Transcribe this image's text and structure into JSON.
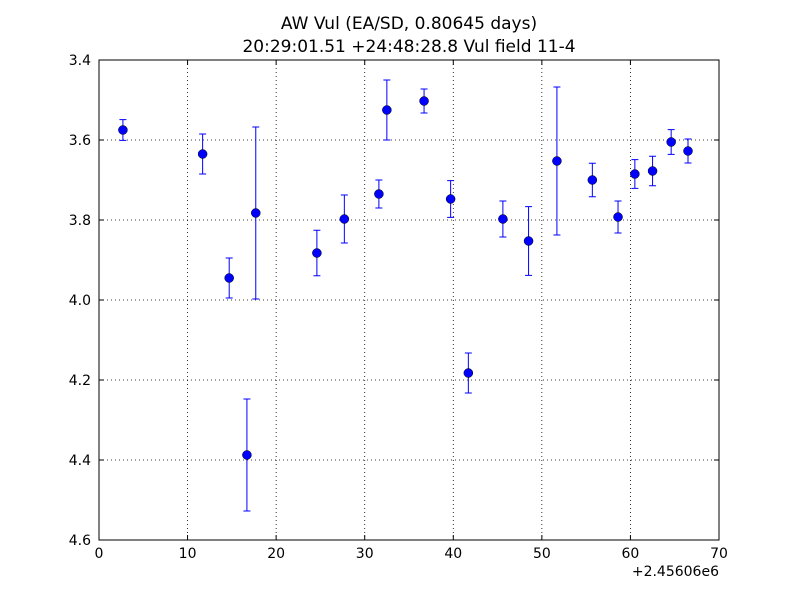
{
  "chart_data": {
    "type": "errorbar",
    "title": "AW Vul (EA/SD, 0.80645 days)",
    "subtitle": "20:29:01.51 +24:48:28.8 Vul field 11-4",
    "x_offset_label": "+2.45606e6",
    "color": "#0000ff",
    "grid": true,
    "x": [
      2.7,
      11.7,
      14.7,
      16.7,
      17.7,
      24.6,
      27.7,
      31.6,
      32.5,
      36.7,
      39.7,
      41.7,
      45.6,
      48.5,
      51.7,
      55.7,
      58.6,
      60.5,
      62.5,
      64.6,
      66.5
    ],
    "values": [
      3.575,
      3.635,
      3.945,
      4.3875,
      3.7825,
      3.8825,
      3.7975,
      3.735,
      3.525,
      3.5025,
      3.7475,
      4.1825,
      3.7975,
      3.8525,
      3.6525,
      3.7,
      3.7925,
      3.685,
      3.6775,
      3.605,
      3.6275
    ],
    "errors": [
      0.026,
      0.05,
      0.05,
      0.14,
      0.215,
      0.057,
      0.06,
      0.035,
      0.075,
      0.03,
      0.046,
      0.05,
      0.045,
      0.086,
      0.185,
      0.042,
      0.04,
      0.036,
      0.037,
      0.031,
      0.03
    ],
    "xlim": [
      0,
      70
    ],
    "xticks": [
      0,
      10,
      20,
      30,
      40,
      50,
      60,
      70
    ],
    "ylim": [
      4.6,
      3.4
    ],
    "yticks": [
      3.4,
      3.6,
      3.8,
      {
        "value": 4,
        "label": "4.0"
      },
      4.2,
      4.4,
      4.6
    ]
  }
}
